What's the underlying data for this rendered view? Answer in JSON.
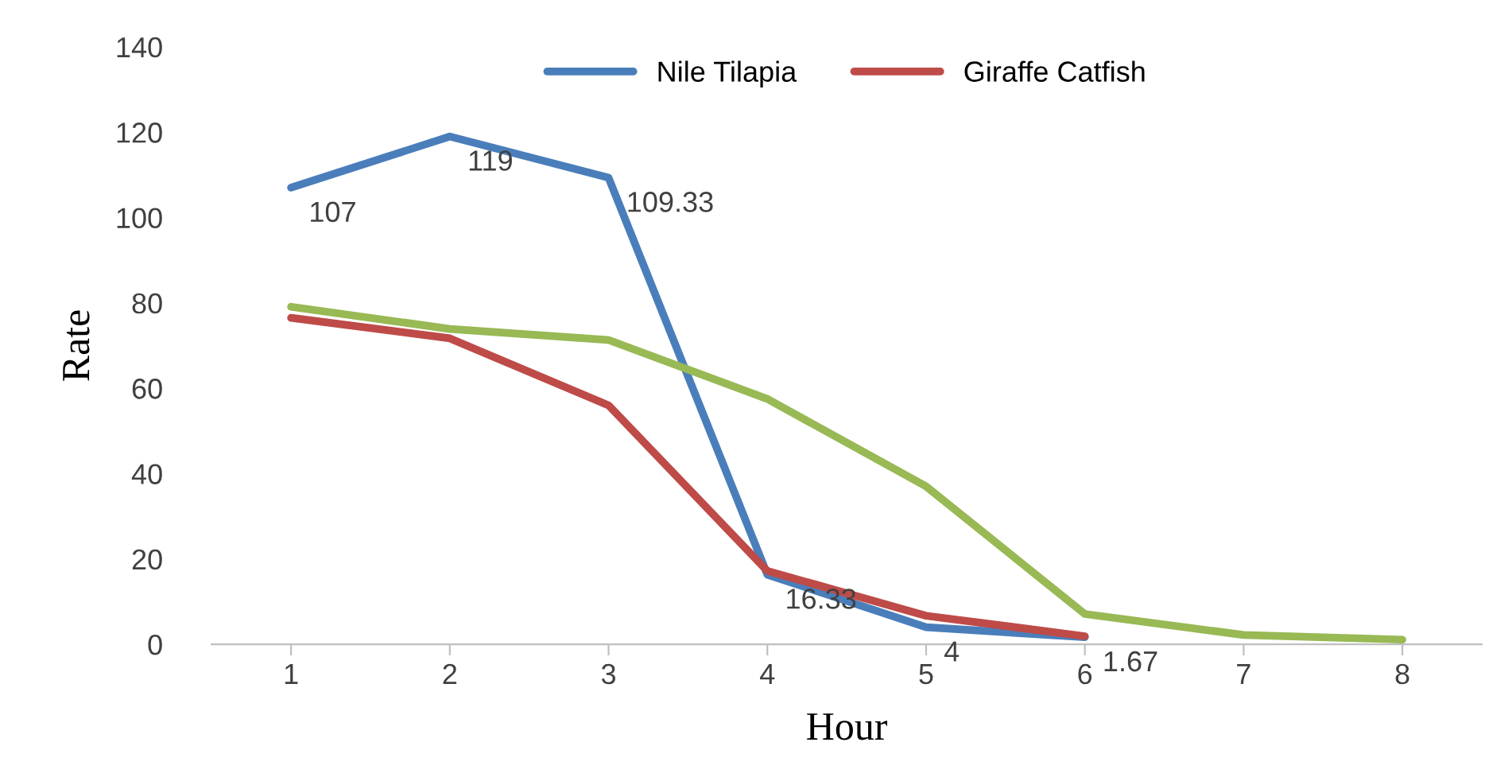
{
  "chart_data": {
    "type": "line",
    "xlabel": "Hour",
    "ylabel": "Rate",
    "categories": [
      "1",
      "2",
      "3",
      "4",
      "5",
      "6",
      "7",
      "8"
    ],
    "ylim": [
      0,
      140
    ],
    "yticks": [
      0,
      20,
      40,
      60,
      80,
      100,
      120,
      140
    ],
    "grid": false,
    "legend": "top",
    "marker": "none",
    "line_style": "solid",
    "series": [
      {
        "name": "Nile Tilapia",
        "color": "#4a7ebb",
        "values": [
          107,
          119,
          109.33,
          16.33,
          4,
          1.67,
          null,
          null
        ],
        "value_labels": [
          "107",
          "119",
          "109.33",
          "16.33",
          "4",
          "1.67",
          null,
          null
        ]
      },
      {
        "name": "Giraffe Catfish",
        "color": "#be4b48",
        "values": [
          76.5,
          71.7,
          56,
          17.2,
          6.7,
          1.9,
          null,
          null
        ]
      },
      {
        "color": "#98b954",
        "values": [
          79.1,
          73.9,
          71.3,
          57.5,
          37,
          7.1,
          2.2,
          1.1
        ]
      }
    ]
  }
}
